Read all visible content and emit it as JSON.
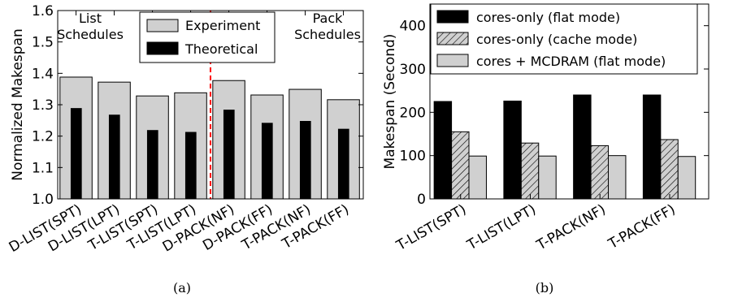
{
  "chart_data": [
    {
      "type": "bar",
      "caption": "(a)",
      "ylabel": "Normalized Makespan",
      "ylim": [
        1.0,
        1.6
      ],
      "yticks": [
        "1.0",
        "1.1",
        "1.2",
        "1.3",
        "1.4",
        "1.5",
        "1.6"
      ],
      "categories": [
        "D-LIST(SPT)",
        "D-LIST(LPT)",
        "T-LIST(SPT)",
        "T-LIST(LPT)",
        "D-PACK(NF)",
        "D-PACK(FF)",
        "T-PACK(NF)",
        "T-PACK(FF)"
      ],
      "series": [
        {
          "name": "Experiment",
          "color": "#d0d0d0",
          "values": [
            1.388,
            1.372,
            1.328,
            1.338,
            1.377,
            1.331,
            1.349,
            1.316
          ]
        },
        {
          "name": "Theoretical",
          "color": "#000000",
          "values": [
            1.288,
            1.267,
            1.218,
            1.212,
            1.283,
            1.241,
            1.247,
            1.222
          ]
        }
      ],
      "annotations": [
        {
          "lines": [
            "List",
            "Schedules"
          ],
          "side": "left"
        },
        {
          "lines": [
            "Pack",
            "Schedules"
          ],
          "side": "right"
        }
      ],
      "divider": {
        "color": "#ff0000",
        "style": "dashed",
        "between": [
          "T-LIST(LPT)",
          "D-PACK(NF)"
        ]
      },
      "legend_position": "top-center",
      "grid": false
    },
    {
      "type": "bar",
      "caption": "(b)",
      "ylabel": "Makespan (Second)",
      "ylim": [
        0,
        450
      ],
      "yticks": [
        "0",
        "100",
        "200",
        "300",
        "400"
      ],
      "categories": [
        "T-LIST(SPT)",
        "T-LIST(LPT)",
        "T-PACK(NF)",
        "T-PACK(FF)"
      ],
      "series": [
        {
          "name": "cores-only (flat mode)",
          "color": "#000000",
          "pattern": "solid",
          "values": [
            225,
            226,
            240,
            240
          ]
        },
        {
          "name": "cores-only (cache mode)",
          "color": "#d0d0d0",
          "pattern": "hatch",
          "values": [
            155,
            129,
            123,
            137
          ]
        },
        {
          "name": "cores + MCDRAM (flat mode)",
          "color": "#d0d0d0",
          "pattern": "solid",
          "values": [
            99,
            99,
            100,
            98
          ]
        }
      ],
      "legend_position": "top-left",
      "grid": false
    }
  ]
}
